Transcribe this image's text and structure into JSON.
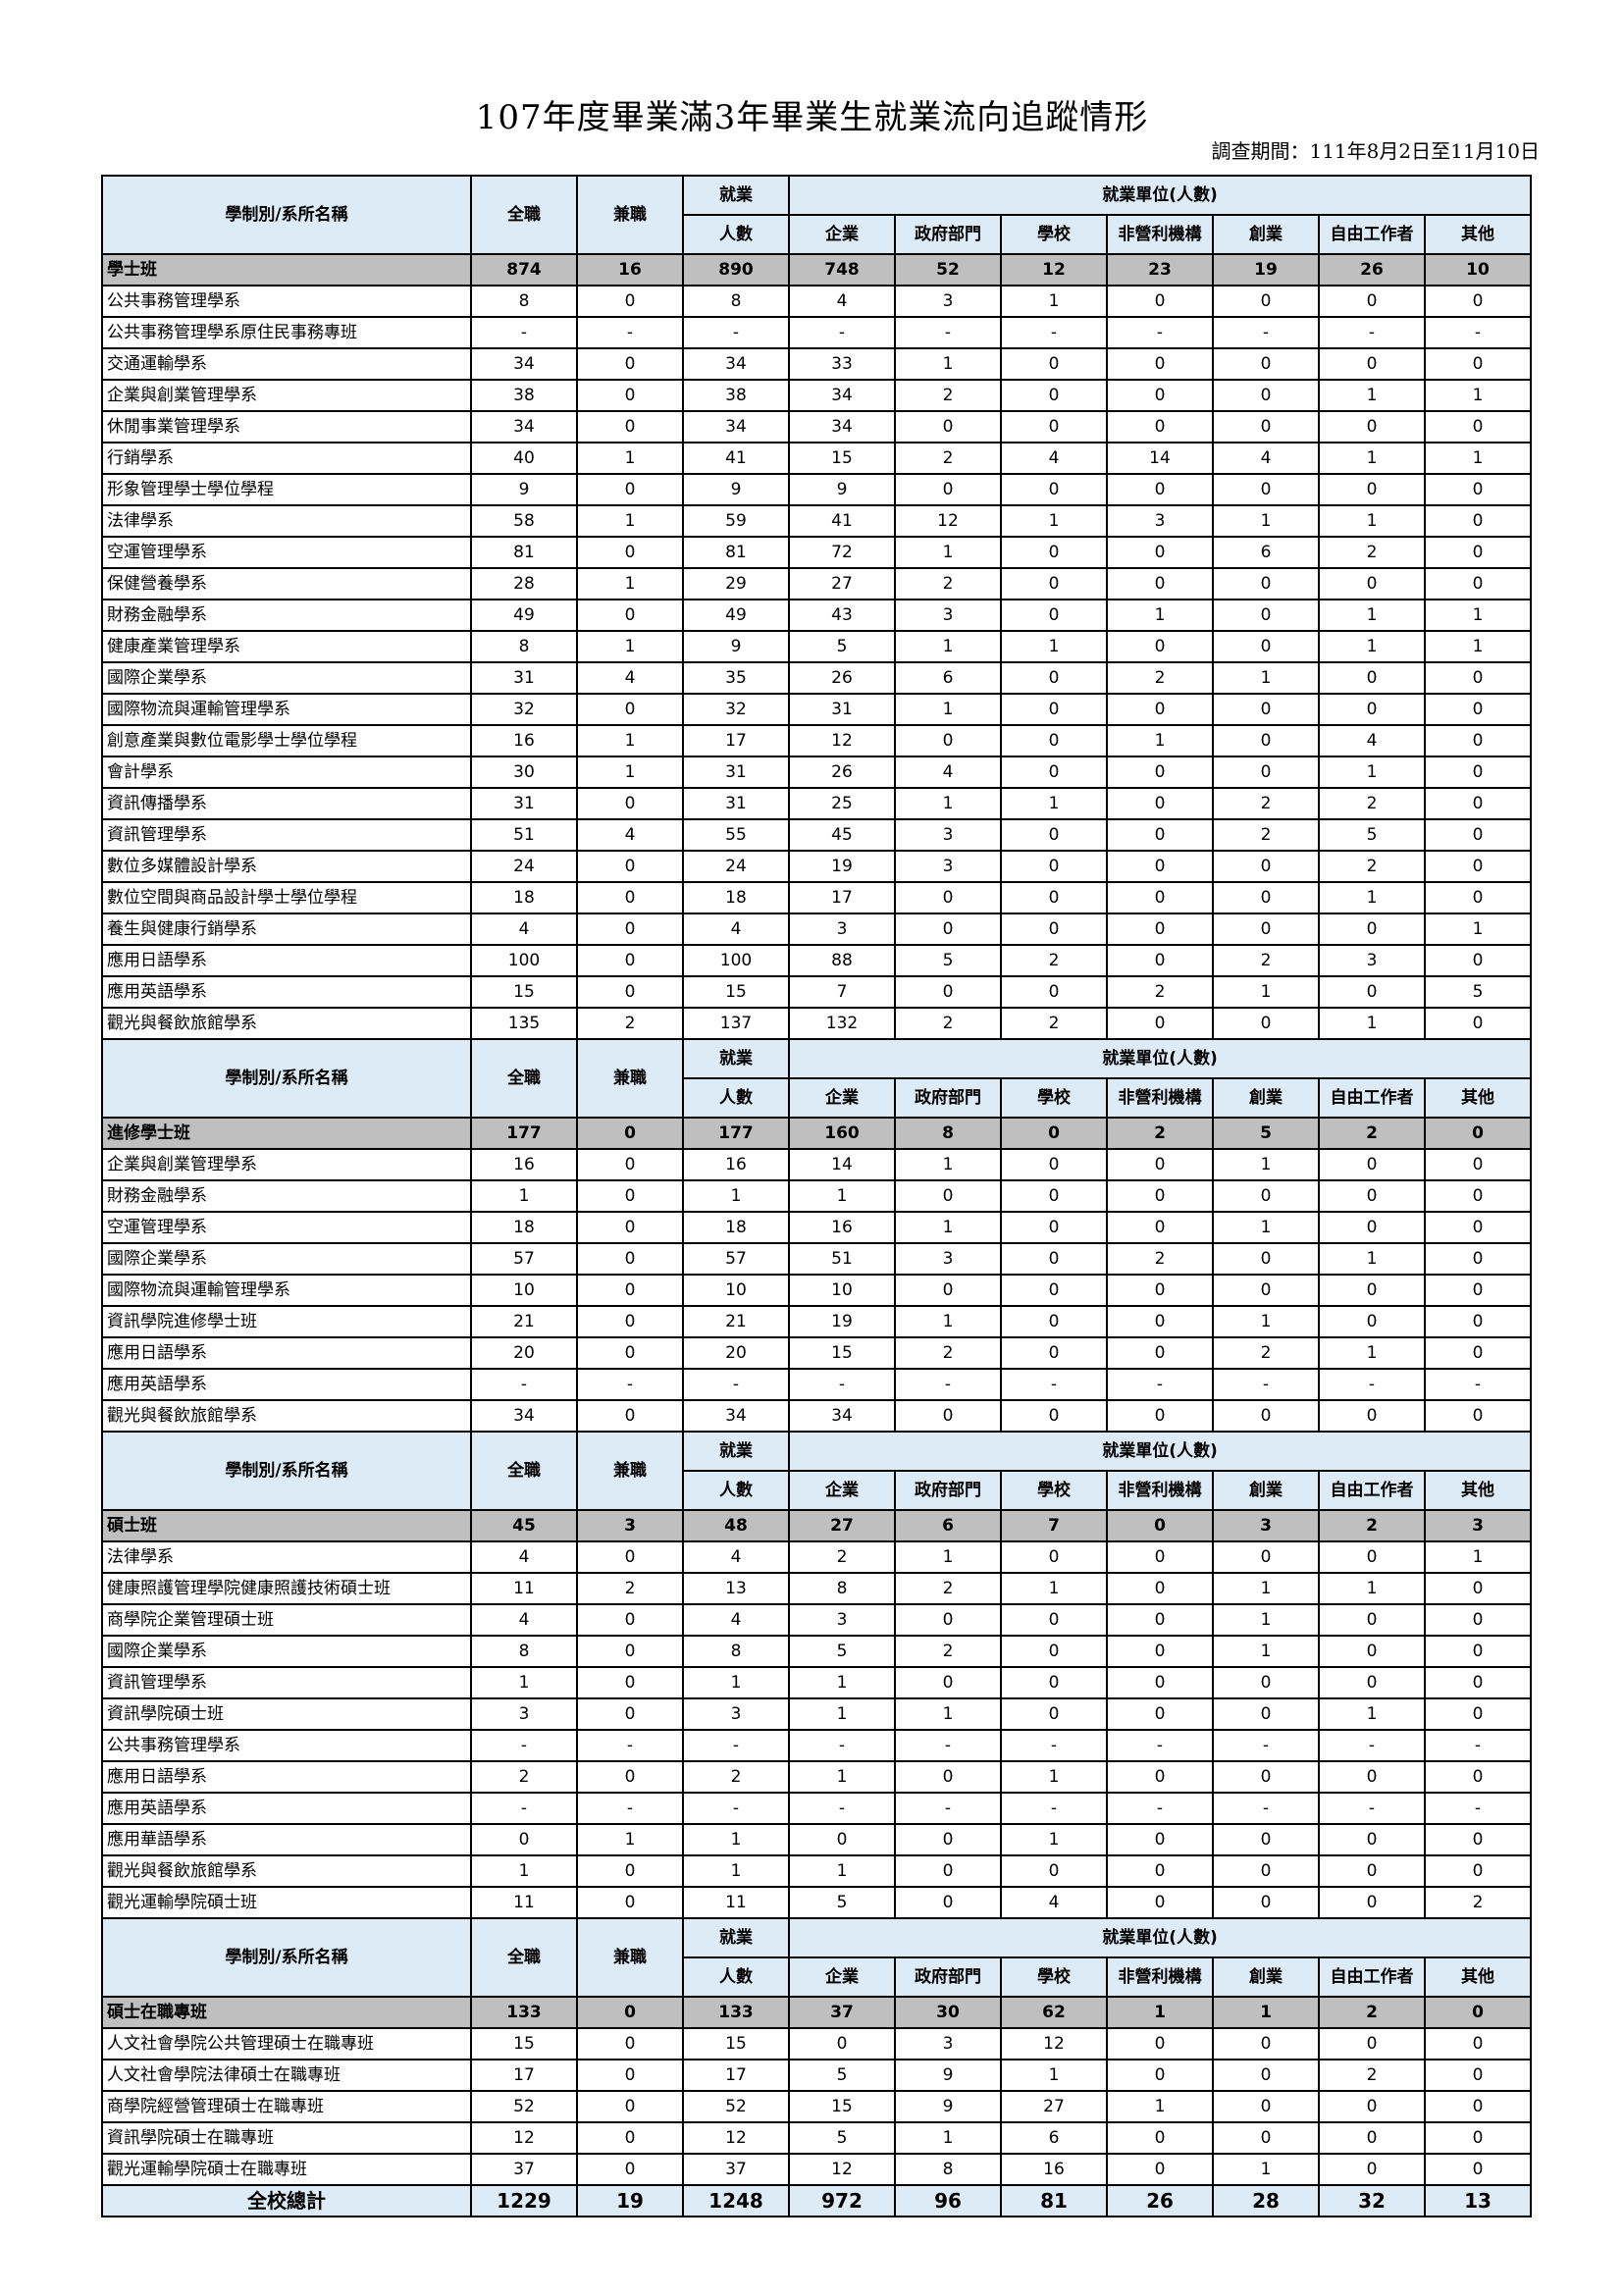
{
  "title": "107年度畢業滿3年畢業生就業流向追蹤情形",
  "survey_period": "調查期間：111年8月2日至11月10日",
  "header": {
    "name_col": "學制別/系所名稱",
    "full_time": "全職",
    "part_time": "兼職",
    "employed_top": "就業",
    "employed_bottom": "人數",
    "unit_group": "就業單位(人數)",
    "units": [
      "企業",
      "政府部門",
      "學校",
      "非營利機構",
      "創業",
      "自由工作者",
      "其他"
    ]
  },
  "colors": {
    "header_bg": "#ddebf7",
    "section_bg": "#bfbfbf",
    "border": "#000000"
  },
  "sections": [
    {
      "name": "學士班",
      "totals": [
        "874",
        "16",
        "890",
        "748",
        "52",
        "12",
        "23",
        "19",
        "26",
        "10"
      ],
      "rows": [
        {
          "name": "公共事務管理學系",
          "values": [
            "8",
            "0",
            "8",
            "4",
            "3",
            "1",
            "0",
            "0",
            "0",
            "0"
          ]
        },
        {
          "name": "公共事務管理學系原住民事務專班",
          "values": [
            "-",
            "-",
            "-",
            "-",
            "-",
            "-",
            "-",
            "-",
            "-",
            "-"
          ]
        },
        {
          "name": "交通運輸學系",
          "values": [
            "34",
            "0",
            "34",
            "33",
            "1",
            "0",
            "0",
            "0",
            "0",
            "0"
          ]
        },
        {
          "name": "企業與創業管理學系",
          "values": [
            "38",
            "0",
            "38",
            "34",
            "2",
            "0",
            "0",
            "0",
            "1",
            "1"
          ]
        },
        {
          "name": "休閒事業管理學系",
          "values": [
            "34",
            "0",
            "34",
            "34",
            "0",
            "0",
            "0",
            "0",
            "0",
            "0"
          ]
        },
        {
          "name": "行銷學系",
          "values": [
            "40",
            "1",
            "41",
            "15",
            "2",
            "4",
            "14",
            "4",
            "1",
            "1"
          ]
        },
        {
          "name": "形象管理學士學位學程",
          "values": [
            "9",
            "0",
            "9",
            "9",
            "0",
            "0",
            "0",
            "0",
            "0",
            "0"
          ]
        },
        {
          "name": "法律學系",
          "values": [
            "58",
            "1",
            "59",
            "41",
            "12",
            "1",
            "3",
            "1",
            "1",
            "0"
          ]
        },
        {
          "name": "空運管理學系",
          "values": [
            "81",
            "0",
            "81",
            "72",
            "1",
            "0",
            "0",
            "6",
            "2",
            "0"
          ]
        },
        {
          "name": "保健營養學系",
          "values": [
            "28",
            "1",
            "29",
            "27",
            "2",
            "0",
            "0",
            "0",
            "0",
            "0"
          ]
        },
        {
          "name": "財務金融學系",
          "values": [
            "49",
            "0",
            "49",
            "43",
            "3",
            "0",
            "1",
            "0",
            "1",
            "1"
          ]
        },
        {
          "name": "健康產業管理學系",
          "values": [
            "8",
            "1",
            "9",
            "5",
            "1",
            "1",
            "0",
            "0",
            "1",
            "1"
          ]
        },
        {
          "name": "國際企業學系",
          "values": [
            "31",
            "4",
            "35",
            "26",
            "6",
            "0",
            "2",
            "1",
            "0",
            "0"
          ]
        },
        {
          "name": "國際物流與運輸管理學系",
          "values": [
            "32",
            "0",
            "32",
            "31",
            "1",
            "0",
            "0",
            "0",
            "0",
            "0"
          ]
        },
        {
          "name": "創意產業與數位電影學士學位學程",
          "values": [
            "16",
            "1",
            "17",
            "12",
            "0",
            "0",
            "1",
            "0",
            "4",
            "0"
          ]
        },
        {
          "name": "會計學系",
          "values": [
            "30",
            "1",
            "31",
            "26",
            "4",
            "0",
            "0",
            "0",
            "1",
            "0"
          ]
        },
        {
          "name": "資訊傳播學系",
          "values": [
            "31",
            "0",
            "31",
            "25",
            "1",
            "1",
            "0",
            "2",
            "2",
            "0"
          ]
        },
        {
          "name": "資訊管理學系",
          "values": [
            "51",
            "4",
            "55",
            "45",
            "3",
            "0",
            "0",
            "2",
            "5",
            "0"
          ]
        },
        {
          "name": "數位多媒體設計學系",
          "values": [
            "24",
            "0",
            "24",
            "19",
            "3",
            "0",
            "0",
            "0",
            "2",
            "0"
          ]
        },
        {
          "name": "數位空間與商品設計學士學位學程",
          "values": [
            "18",
            "0",
            "18",
            "17",
            "0",
            "0",
            "0",
            "0",
            "1",
            "0"
          ]
        },
        {
          "name": "養生與健康行銷學系",
          "values": [
            "4",
            "0",
            "4",
            "3",
            "0",
            "0",
            "0",
            "0",
            "0",
            "1"
          ]
        },
        {
          "name": "應用日語學系",
          "values": [
            "100",
            "0",
            "100",
            "88",
            "5",
            "2",
            "0",
            "2",
            "3",
            "0"
          ]
        },
        {
          "name": "應用英語學系",
          "values": [
            "15",
            "0",
            "15",
            "7",
            "0",
            "0",
            "2",
            "1",
            "0",
            "5"
          ]
        },
        {
          "name": "觀光與餐飲旅館學系",
          "values": [
            "135",
            "2",
            "137",
            "132",
            "2",
            "2",
            "0",
            "0",
            "1",
            "0"
          ]
        }
      ]
    },
    {
      "name": "進修學士班",
      "totals": [
        "177",
        "0",
        "177",
        "160",
        "8",
        "0",
        "2",
        "5",
        "2",
        "0"
      ],
      "rows": [
        {
          "name": "企業與創業管理學系",
          "values": [
            "16",
            "0",
            "16",
            "14",
            "1",
            "0",
            "0",
            "1",
            "0",
            "0"
          ]
        },
        {
          "name": "財務金融學系",
          "values": [
            "1",
            "0",
            "1",
            "1",
            "0",
            "0",
            "0",
            "0",
            "0",
            "0"
          ]
        },
        {
          "name": "空運管理學系",
          "values": [
            "18",
            "0",
            "18",
            "16",
            "1",
            "0",
            "0",
            "1",
            "0",
            "0"
          ]
        },
        {
          "name": "國際企業學系",
          "values": [
            "57",
            "0",
            "57",
            "51",
            "3",
            "0",
            "2",
            "0",
            "1",
            "0"
          ]
        },
        {
          "name": "國際物流與運輸管理學系",
          "values": [
            "10",
            "0",
            "10",
            "10",
            "0",
            "0",
            "0",
            "0",
            "0",
            "0"
          ]
        },
        {
          "name": "資訊學院進修學士班",
          "values": [
            "21",
            "0",
            "21",
            "19",
            "1",
            "0",
            "0",
            "1",
            "0",
            "0"
          ]
        },
        {
          "name": "應用日語學系",
          "values": [
            "20",
            "0",
            "20",
            "15",
            "2",
            "0",
            "0",
            "2",
            "1",
            "0"
          ]
        },
        {
          "name": "應用英語學系",
          "values": [
            "-",
            "-",
            "-",
            "-",
            "-",
            "-",
            "-",
            "-",
            "-",
            "-"
          ]
        },
        {
          "name": "觀光與餐飲旅館學系",
          "values": [
            "34",
            "0",
            "34",
            "34",
            "0",
            "0",
            "0",
            "0",
            "0",
            "0"
          ]
        }
      ]
    },
    {
      "name": "碩士班",
      "totals": [
        "45",
        "3",
        "48",
        "27",
        "6",
        "7",
        "0",
        "3",
        "2",
        "3"
      ],
      "rows": [
        {
          "name": "法律學系",
          "values": [
            "4",
            "0",
            "4",
            "2",
            "1",
            "0",
            "0",
            "0",
            "0",
            "1"
          ]
        },
        {
          "name": "健康照護管理學院健康照護技術碩士班",
          "values": [
            "11",
            "2",
            "13",
            "8",
            "2",
            "1",
            "0",
            "1",
            "1",
            "0"
          ]
        },
        {
          "name": "商學院企業管理碩士班",
          "values": [
            "4",
            "0",
            "4",
            "3",
            "0",
            "0",
            "0",
            "1",
            "0",
            "0"
          ]
        },
        {
          "name": "國際企業學系",
          "values": [
            "8",
            "0",
            "8",
            "5",
            "2",
            "0",
            "0",
            "1",
            "0",
            "0"
          ]
        },
        {
          "name": "資訊管理學系",
          "values": [
            "1",
            "0",
            "1",
            "1",
            "0",
            "0",
            "0",
            "0",
            "0",
            "0"
          ]
        },
        {
          "name": "資訊學院碩士班",
          "values": [
            "3",
            "0",
            "3",
            "1",
            "1",
            "0",
            "0",
            "0",
            "1",
            "0"
          ]
        },
        {
          "name": "公共事務管理學系",
          "values": [
            "-",
            "-",
            "-",
            "-",
            "-",
            "-",
            "-",
            "-",
            "-",
            "-"
          ]
        },
        {
          "name": "應用日語學系",
          "values": [
            "2",
            "0",
            "2",
            "1",
            "0",
            "1",
            "0",
            "0",
            "0",
            "0"
          ]
        },
        {
          "name": "應用英語學系",
          "values": [
            "-",
            "-",
            "-",
            "-",
            "-",
            "-",
            "-",
            "-",
            "-",
            "-"
          ]
        },
        {
          "name": "應用華語學系",
          "values": [
            "0",
            "1",
            "1",
            "0",
            "0",
            "1",
            "0",
            "0",
            "0",
            "0"
          ]
        },
        {
          "name": "觀光與餐飲旅館學系",
          "values": [
            "1",
            "0",
            "1",
            "1",
            "0",
            "0",
            "0",
            "0",
            "0",
            "0"
          ]
        },
        {
          "name": "觀光運輸學院碩士班",
          "values": [
            "11",
            "0",
            "11",
            "5",
            "0",
            "4",
            "0",
            "0",
            "0",
            "2"
          ]
        }
      ]
    },
    {
      "name": "碩士在職專班",
      "totals": [
        "133",
        "0",
        "133",
        "37",
        "30",
        "62",
        "1",
        "1",
        "2",
        "0"
      ],
      "rows": [
        {
          "name": "人文社會學院公共管理碩士在職專班",
          "values": [
            "15",
            "0",
            "15",
            "0",
            "3",
            "12",
            "0",
            "0",
            "0",
            "0"
          ]
        },
        {
          "name": "人文社會學院法律碩士在職專班",
          "values": [
            "17",
            "0",
            "17",
            "5",
            "9",
            "1",
            "0",
            "0",
            "2",
            "0"
          ]
        },
        {
          "name": "商學院經營管理碩士在職專班",
          "values": [
            "52",
            "0",
            "52",
            "15",
            "9",
            "27",
            "1",
            "0",
            "0",
            "0"
          ]
        },
        {
          "name": "資訊學院碩士在職專班",
          "values": [
            "12",
            "0",
            "12",
            "5",
            "1",
            "6",
            "0",
            "0",
            "0",
            "0"
          ]
        },
        {
          "name": "觀光運輸學院碩士在職專班",
          "values": [
            "37",
            "0",
            "37",
            "12",
            "8",
            "16",
            "0",
            "1",
            "0",
            "0"
          ]
        }
      ]
    }
  ],
  "grand_total": {
    "label": "全校總計",
    "values": [
      "1229",
      "19",
      "1248",
      "972",
      "96",
      "81",
      "26",
      "28",
      "32",
      "13"
    ]
  }
}
